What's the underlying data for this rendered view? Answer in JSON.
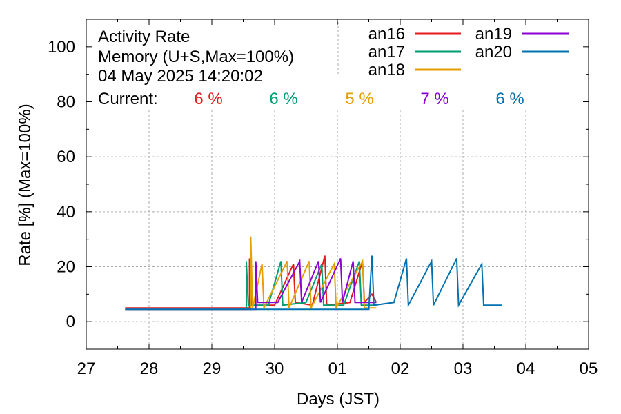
{
  "chart_data": {
    "type": "line",
    "title_lines": [
      "Activity Rate",
      "Memory (U+S,Max=100%)",
      "04 May 2025 14:20:02"
    ],
    "current_label": "Current:",
    "xlabel": "Days (JST)",
    "ylabel": "Rate [%]  (Max=100%)",
    "ylim": [
      -10,
      110
    ],
    "xlim": [
      0,
      8
    ],
    "x_tick_labels": [
      "27",
      "28",
      "29",
      "30",
      "01",
      "02",
      "03",
      "04",
      "05"
    ],
    "y_ticks": [
      0,
      20,
      40,
      60,
      80,
      100
    ],
    "grid": true,
    "legend_position": "top-right",
    "series": [
      {
        "name": "an16",
        "color": "#e41a1c",
        "current": "6 %",
        "points": [
          [
            0.62,
            5
          ],
          [
            2.5,
            5
          ],
          [
            2.6,
            5
          ],
          [
            2.6,
            23
          ],
          [
            2.63,
            6
          ],
          [
            3.0,
            6
          ],
          [
            3.3,
            21
          ],
          [
            3.33,
            7
          ],
          [
            3.6,
            6
          ],
          [
            3.8,
            24
          ],
          [
            3.83,
            6
          ],
          [
            4.2,
            7
          ],
          [
            4.4,
            22
          ],
          [
            4.43,
            7
          ],
          [
            4.55,
            10
          ],
          [
            4.62,
            7
          ]
        ]
      },
      {
        "name": "an17",
        "color": "#009e73",
        "current": "6 %",
        "points": [
          [
            0.62,
            4.5
          ],
          [
            2.5,
            4.5
          ],
          [
            2.55,
            4.5
          ],
          [
            2.55,
            22
          ],
          [
            2.58,
            6
          ],
          [
            2.9,
            6
          ],
          [
            3.1,
            22
          ],
          [
            3.13,
            6
          ],
          [
            3.5,
            7
          ],
          [
            3.75,
            21
          ],
          [
            3.78,
            6
          ],
          [
            4.1,
            6
          ],
          [
            4.35,
            22
          ],
          [
            4.38,
            6
          ],
          [
            4.62,
            6
          ]
        ]
      },
      {
        "name": "an18",
        "color": "#e69f00",
        "current": "5 %",
        "points": [
          [
            0.62,
            4.5
          ],
          [
            2.5,
            4.5
          ],
          [
            2.62,
            4.5
          ],
          [
            2.62,
            31
          ],
          [
            2.65,
            5
          ],
          [
            2.8,
            21
          ],
          [
            2.83,
            5
          ],
          [
            3.2,
            22
          ],
          [
            3.23,
            5
          ],
          [
            3.55,
            22
          ],
          [
            3.58,
            5
          ],
          [
            3.95,
            21
          ],
          [
            3.98,
            5
          ],
          [
            4.4,
            22
          ],
          [
            4.43,
            5
          ],
          [
            4.62,
            5
          ]
        ]
      },
      {
        "name": "an19",
        "color": "#8c00d4",
        "current": "7 %",
        "points": [
          [
            0.62,
            4.5
          ],
          [
            2.5,
            4.5
          ],
          [
            2.7,
            4.5
          ],
          [
            2.7,
            22
          ],
          [
            2.73,
            7
          ],
          [
            3.05,
            7
          ],
          [
            3.4,
            22
          ],
          [
            3.43,
            7
          ],
          [
            3.7,
            22
          ],
          [
            3.73,
            7
          ],
          [
            4.05,
            23
          ],
          [
            4.08,
            7
          ],
          [
            4.25,
            22
          ],
          [
            4.28,
            7
          ],
          [
            4.62,
            7
          ]
        ]
      },
      {
        "name": "an20",
        "color": "#0072b2",
        "current": "6 %",
        "points": [
          [
            0.62,
            4.5
          ],
          [
            3.6,
            4.5
          ],
          [
            3.6,
            4.5
          ],
          [
            4.5,
            4.5
          ],
          [
            4.5,
            4.5
          ],
          [
            4.55,
            24
          ],
          [
            4.58,
            6
          ],
          [
            4.9,
            7
          ],
          [
            5.1,
            23
          ],
          [
            5.13,
            6
          ],
          [
            5.5,
            22
          ],
          [
            5.53,
            6
          ],
          [
            5.9,
            23
          ],
          [
            5.93,
            6
          ],
          [
            6.3,
            21
          ],
          [
            6.33,
            6
          ],
          [
            6.62,
            6
          ]
        ]
      }
    ]
  }
}
